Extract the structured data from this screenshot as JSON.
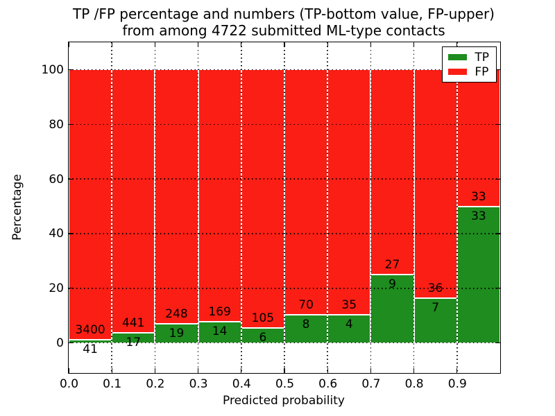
{
  "figure": {
    "title_line1": "TP /FP percentage and numbers (TP-bottom value, FP-upper)",
    "title_line2": "from among 4722 submitted ML-type contacts"
  },
  "chart_data": {
    "type": "bar",
    "subtype": "stacked-100-percent",
    "title": "TP /FP percentage and numbers (TP-bottom value, FP-upper)\nfrom among 4722 submitted ML-type contacts",
    "xlabel": "Predicted probability",
    "ylabel": "Percentage",
    "total_submitted": 4722,
    "categories": [
      "0.0-0.1",
      "0.1-0.2",
      "0.2-0.3",
      "0.3-0.4",
      "0.4-0.5",
      "0.5-0.6",
      "0.6-0.7",
      "0.7-0.8",
      "0.8-0.9",
      "0.9-1.0"
    ],
    "bins": [
      {
        "x_start": 0.0,
        "tp": 41,
        "fp": 3400,
        "tp_pct": 1.19
      },
      {
        "x_start": 0.1,
        "tp": 17,
        "fp": 441,
        "tp_pct": 3.71
      },
      {
        "x_start": 0.2,
        "tp": 19,
        "fp": 248,
        "tp_pct": 7.12
      },
      {
        "x_start": 0.3,
        "tp": 14,
        "fp": 169,
        "tp_pct": 7.65
      },
      {
        "x_start": 0.4,
        "tp": 6,
        "fp": 105,
        "tp_pct": 5.41
      },
      {
        "x_start": 0.5,
        "tp": 8,
        "fp": 70,
        "tp_pct": 10.26
      },
      {
        "x_start": 0.6,
        "tp": 4,
        "fp": 35,
        "tp_pct": 10.26
      },
      {
        "x_start": 0.7,
        "tp": 9,
        "fp": 27,
        "tp_pct": 25.0
      },
      {
        "x_start": 0.8,
        "tp": 7,
        "fp": 36,
        "tp_pct": 16.28
      },
      {
        "x_start": 0.9,
        "tp": 33,
        "fp": 33,
        "tp_pct": 50.0
      }
    ],
    "series": [
      {
        "name": "TP",
        "color": "#1e8c1e",
        "counts": [
          41,
          17,
          19,
          14,
          6,
          8,
          4,
          9,
          7,
          33
        ]
      },
      {
        "name": "FP",
        "color": "#fa1e14",
        "counts": [
          3400,
          441,
          248,
          169,
          105,
          70,
          35,
          27,
          36,
          33
        ]
      }
    ],
    "xlim": [
      0,
      1
    ],
    "ylim": [
      -11,
      110
    ],
    "xtick_values": [
      0,
      0.1,
      0.2,
      0.3,
      0.4,
      0.5,
      0.6,
      0.7,
      0.8,
      0.9
    ],
    "xtick_labels": [
      "0.0",
      "0.1",
      "0.2",
      "0.3",
      "0.4",
      "0.5",
      "0.6",
      "0.7",
      "0.8",
      "0.9"
    ],
    "ytick_values": [
      0,
      20,
      40,
      60,
      80,
      100
    ],
    "ytick_labels": [
      "0",
      "20",
      "40",
      "60",
      "80",
      "100"
    ],
    "grid": "dotted, both axes",
    "legend": {
      "position": "upper right",
      "entries": [
        {
          "label": "TP",
          "color": "#1e8c1e"
        },
        {
          "label": "FP",
          "color": "#fa1e14"
        }
      ]
    }
  }
}
